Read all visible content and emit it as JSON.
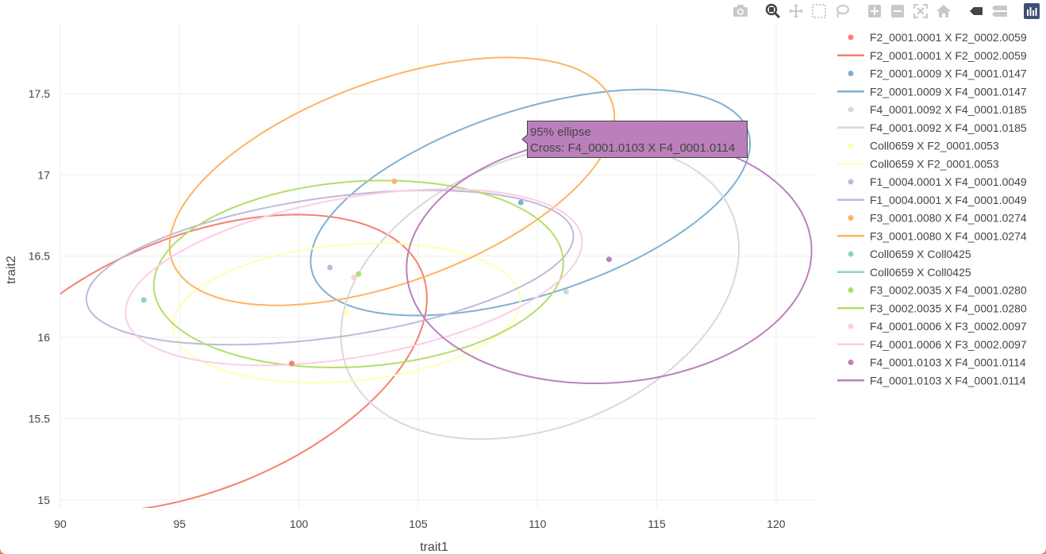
{
  "modebar": {
    "buttons": [
      "camera-icon",
      "zoom-icon",
      "pan-icon",
      "box-select-icon",
      "lasso-select-icon",
      "zoom-in-icon",
      "zoom-out-icon",
      "autoscale-icon",
      "reset-axes-icon",
      "spike-lines-icon",
      "compare-hover-icon",
      "plotly-logo-icon"
    ],
    "active": "zoom-icon"
  },
  "hover": {
    "line1": "95% ellipse",
    "line2": "Cross: F4_0001.0103 X F4_0001.0114",
    "bg": "#bb80bb",
    "trace": "F4_0001.0103 X F4_0001.0114"
  },
  "chart_data": {
    "type": "scatter",
    "title": "",
    "xlabel": "trait1",
    "ylabel": "trait2",
    "xlim": [
      90,
      121.7
    ],
    "ylim": [
      14.95,
      17.93
    ],
    "xticks": [
      "90",
      "95",
      "100",
      "105",
      "110",
      "115",
      "120"
    ],
    "yticks": [
      "15",
      "15.5",
      "16",
      "16.5",
      "17",
      "17.5"
    ],
    "grid": true,
    "legend_position": "right",
    "series": [
      {
        "name": "F2_0001.0001 X F2_0002.0059",
        "color": "#f68070",
        "point": [
          99.7,
          15.84
        ],
        "ellipse": {
          "cx": 95.7,
          "cy": 15.84,
          "rx": 10.2,
          "ry": 0.78,
          "angle": -22
        }
      },
      {
        "name": "F2_0001.0009 X F4_0001.0147",
        "color": "#80b1d3",
        "point": [
          109.3,
          16.83
        ],
        "ellipse": {
          "cx": 109.7,
          "cy": 16.83,
          "rx": 9.6,
          "ry": 0.57,
          "angle": -18
        }
      },
      {
        "name": "F4_0001.0092 X F4_0001.0185",
        "color": "#d9d9d9",
        "point": [
          111.2,
          16.28
        ],
        "ellipse": {
          "cx": 110.1,
          "cy": 16.28,
          "rx": 8.7,
          "ry": 0.83,
          "angle": -22
        }
      },
      {
        "name": "Coll0659 X F2_0001.0053",
        "color": "#ffffb3",
        "point": [
          102.0,
          16.15
        ],
        "ellipse": {
          "cx": 102.0,
          "cy": 16.15,
          "rx": 7.3,
          "ry": 0.42,
          "angle": -5
        }
      },
      {
        "name": "F1_0004.0001 X F4_0001.0049",
        "color": "#bebada",
        "point": [
          101.3,
          16.43
        ],
        "ellipse": {
          "cx": 101.3,
          "cy": 16.43,
          "rx": 10.3,
          "ry": 0.43,
          "angle": -8
        }
      },
      {
        "name": "F3_0001.0080 X F4_0001.0274",
        "color": "#fdb462",
        "point": [
          104.0,
          16.96
        ],
        "ellipse": {
          "cx": 103.9,
          "cy": 16.96,
          "rx": 9.8,
          "ry": 0.62,
          "angle": -20
        }
      },
      {
        "name": "Coll0659 X Coll0425",
        "color": "#8dd3c7",
        "point": [
          93.5,
          16.23
        ],
        "ellipse": null
      },
      {
        "name": "F3_0002.0035 X F4_0001.0280",
        "color": "#b3de69",
        "point": [
          102.5,
          16.39
        ],
        "ellipse": {
          "cx": 102.5,
          "cy": 16.39,
          "rx": 8.6,
          "ry": 0.57,
          "angle": -4
        }
      },
      {
        "name": "F4_0001.0006 X F3_0002.0097",
        "color": "#fccde5",
        "point": [
          102.3,
          16.37
        ],
        "ellipse": {
          "cx": 102.3,
          "cy": 16.37,
          "rx": 9.7,
          "ry": 0.49,
          "angle": -10
        }
      },
      {
        "name": "F4_0001.0103 X F4_0001.0114",
        "color": "#bc80bd",
        "point": [
          113.0,
          16.48
        ],
        "ellipse": {
          "cx": 113.0,
          "cy": 16.48,
          "rx": 8.5,
          "ry": 0.76,
          "angle": -4
        }
      }
    ]
  }
}
